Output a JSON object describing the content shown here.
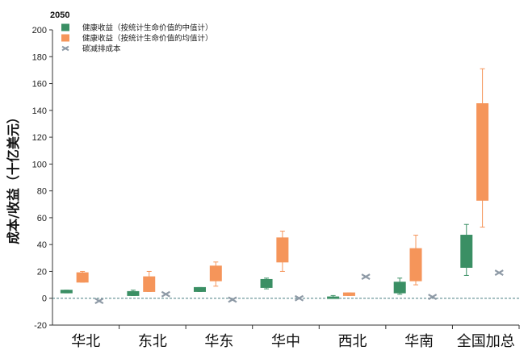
{
  "chart_data": {
    "type": "boxplot",
    "title": "2050",
    "ylabel": "成本/收益（十亿美元）",
    "xlabel": "",
    "ylim": [
      -20,
      200
    ],
    "yticks": [
      -20,
      0,
      20,
      40,
      60,
      80,
      100,
      120,
      140,
      160,
      180,
      200
    ],
    "categories": [
      "华北",
      "东北",
      "华东",
      "华中",
      "西北",
      "华南",
      "全国加总"
    ],
    "legend_position": "top-left",
    "grid": false,
    "zero_line": "dashed",
    "series": [
      {
        "name": "健康收益（按统计生命价值的中值计）",
        "color": "#3a8f64",
        "boxes": [
          {
            "min": 4,
            "q1": 4,
            "q3": 6,
            "max": 6
          },
          {
            "min": 2,
            "q1": 2,
            "q3": 5,
            "max": 6
          },
          {
            "min": 5,
            "q1": 5,
            "q3": 8,
            "max": 8
          },
          {
            "min": 7,
            "q1": 8,
            "q3": 14,
            "max": 15
          },
          {
            "min": 0,
            "q1": 0,
            "q3": 1,
            "max": 2
          },
          {
            "min": 3,
            "q1": 4,
            "q3": 12,
            "max": 15
          },
          {
            "min": 17,
            "q1": 23,
            "q3": 47,
            "max": 55
          }
        ]
      },
      {
        "name": "健康收益（按统计生命价值的均值计）",
        "color": "#f5955a",
        "boxes": [
          {
            "min": 12,
            "q1": 12,
            "q3": 19,
            "max": 20
          },
          {
            "min": 5,
            "q1": 5,
            "q3": 16,
            "max": 20
          },
          {
            "min": 9,
            "q1": 13,
            "q3": 24,
            "max": 27
          },
          {
            "min": 20,
            "q1": 27,
            "q3": 45,
            "max": 50
          },
          {
            "min": 2,
            "q1": 2,
            "q3": 4,
            "max": 4
          },
          {
            "min": 10,
            "q1": 13,
            "q3": 37,
            "max": 47
          },
          {
            "min": 53,
            "q1": 73,
            "q3": 145,
            "max": 171
          }
        ]
      },
      {
        "name": "碳减排成本",
        "color": "#8e9aa6",
        "values": [
          -2,
          3,
          -1,
          0,
          16,
          1,
          19
        ]
      }
    ]
  }
}
